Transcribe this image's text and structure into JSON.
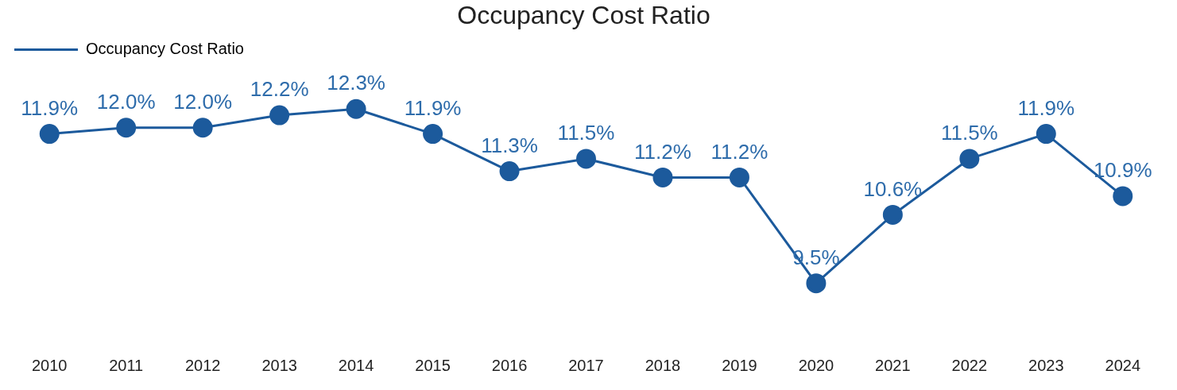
{
  "chart_data": {
    "type": "line",
    "title": "Occupancy Cost Ratio",
    "categories": [
      "2010",
      "2011",
      "2012",
      "2013",
      "2014",
      "2015",
      "2016",
      "2017",
      "2018",
      "2019",
      "2020",
      "2021",
      "2022",
      "2023",
      "2024"
    ],
    "series": [
      {
        "name": "Occupancy Cost Ratio",
        "color": "#1c5a9c",
        "values": [
          11.9,
          12.0,
          12.0,
          12.2,
          12.3,
          11.9,
          11.3,
          11.5,
          11.2,
          11.2,
          9.5,
          10.6,
          11.5,
          11.9,
          10.9
        ],
        "value_labels": [
          "11.9%",
          "12.0%",
          "12.0%",
          "12.2%",
          "12.3%",
          "11.9%",
          "11.3%",
          "11.5%",
          "11.2%",
          "11.2%",
          "9.5%",
          "10.6%",
          "11.5%",
          "11.9%",
          "10.9%"
        ]
      }
    ],
    "legend": "top left",
    "grid": false,
    "marker": "circle",
    "line_style": "solid"
  }
}
